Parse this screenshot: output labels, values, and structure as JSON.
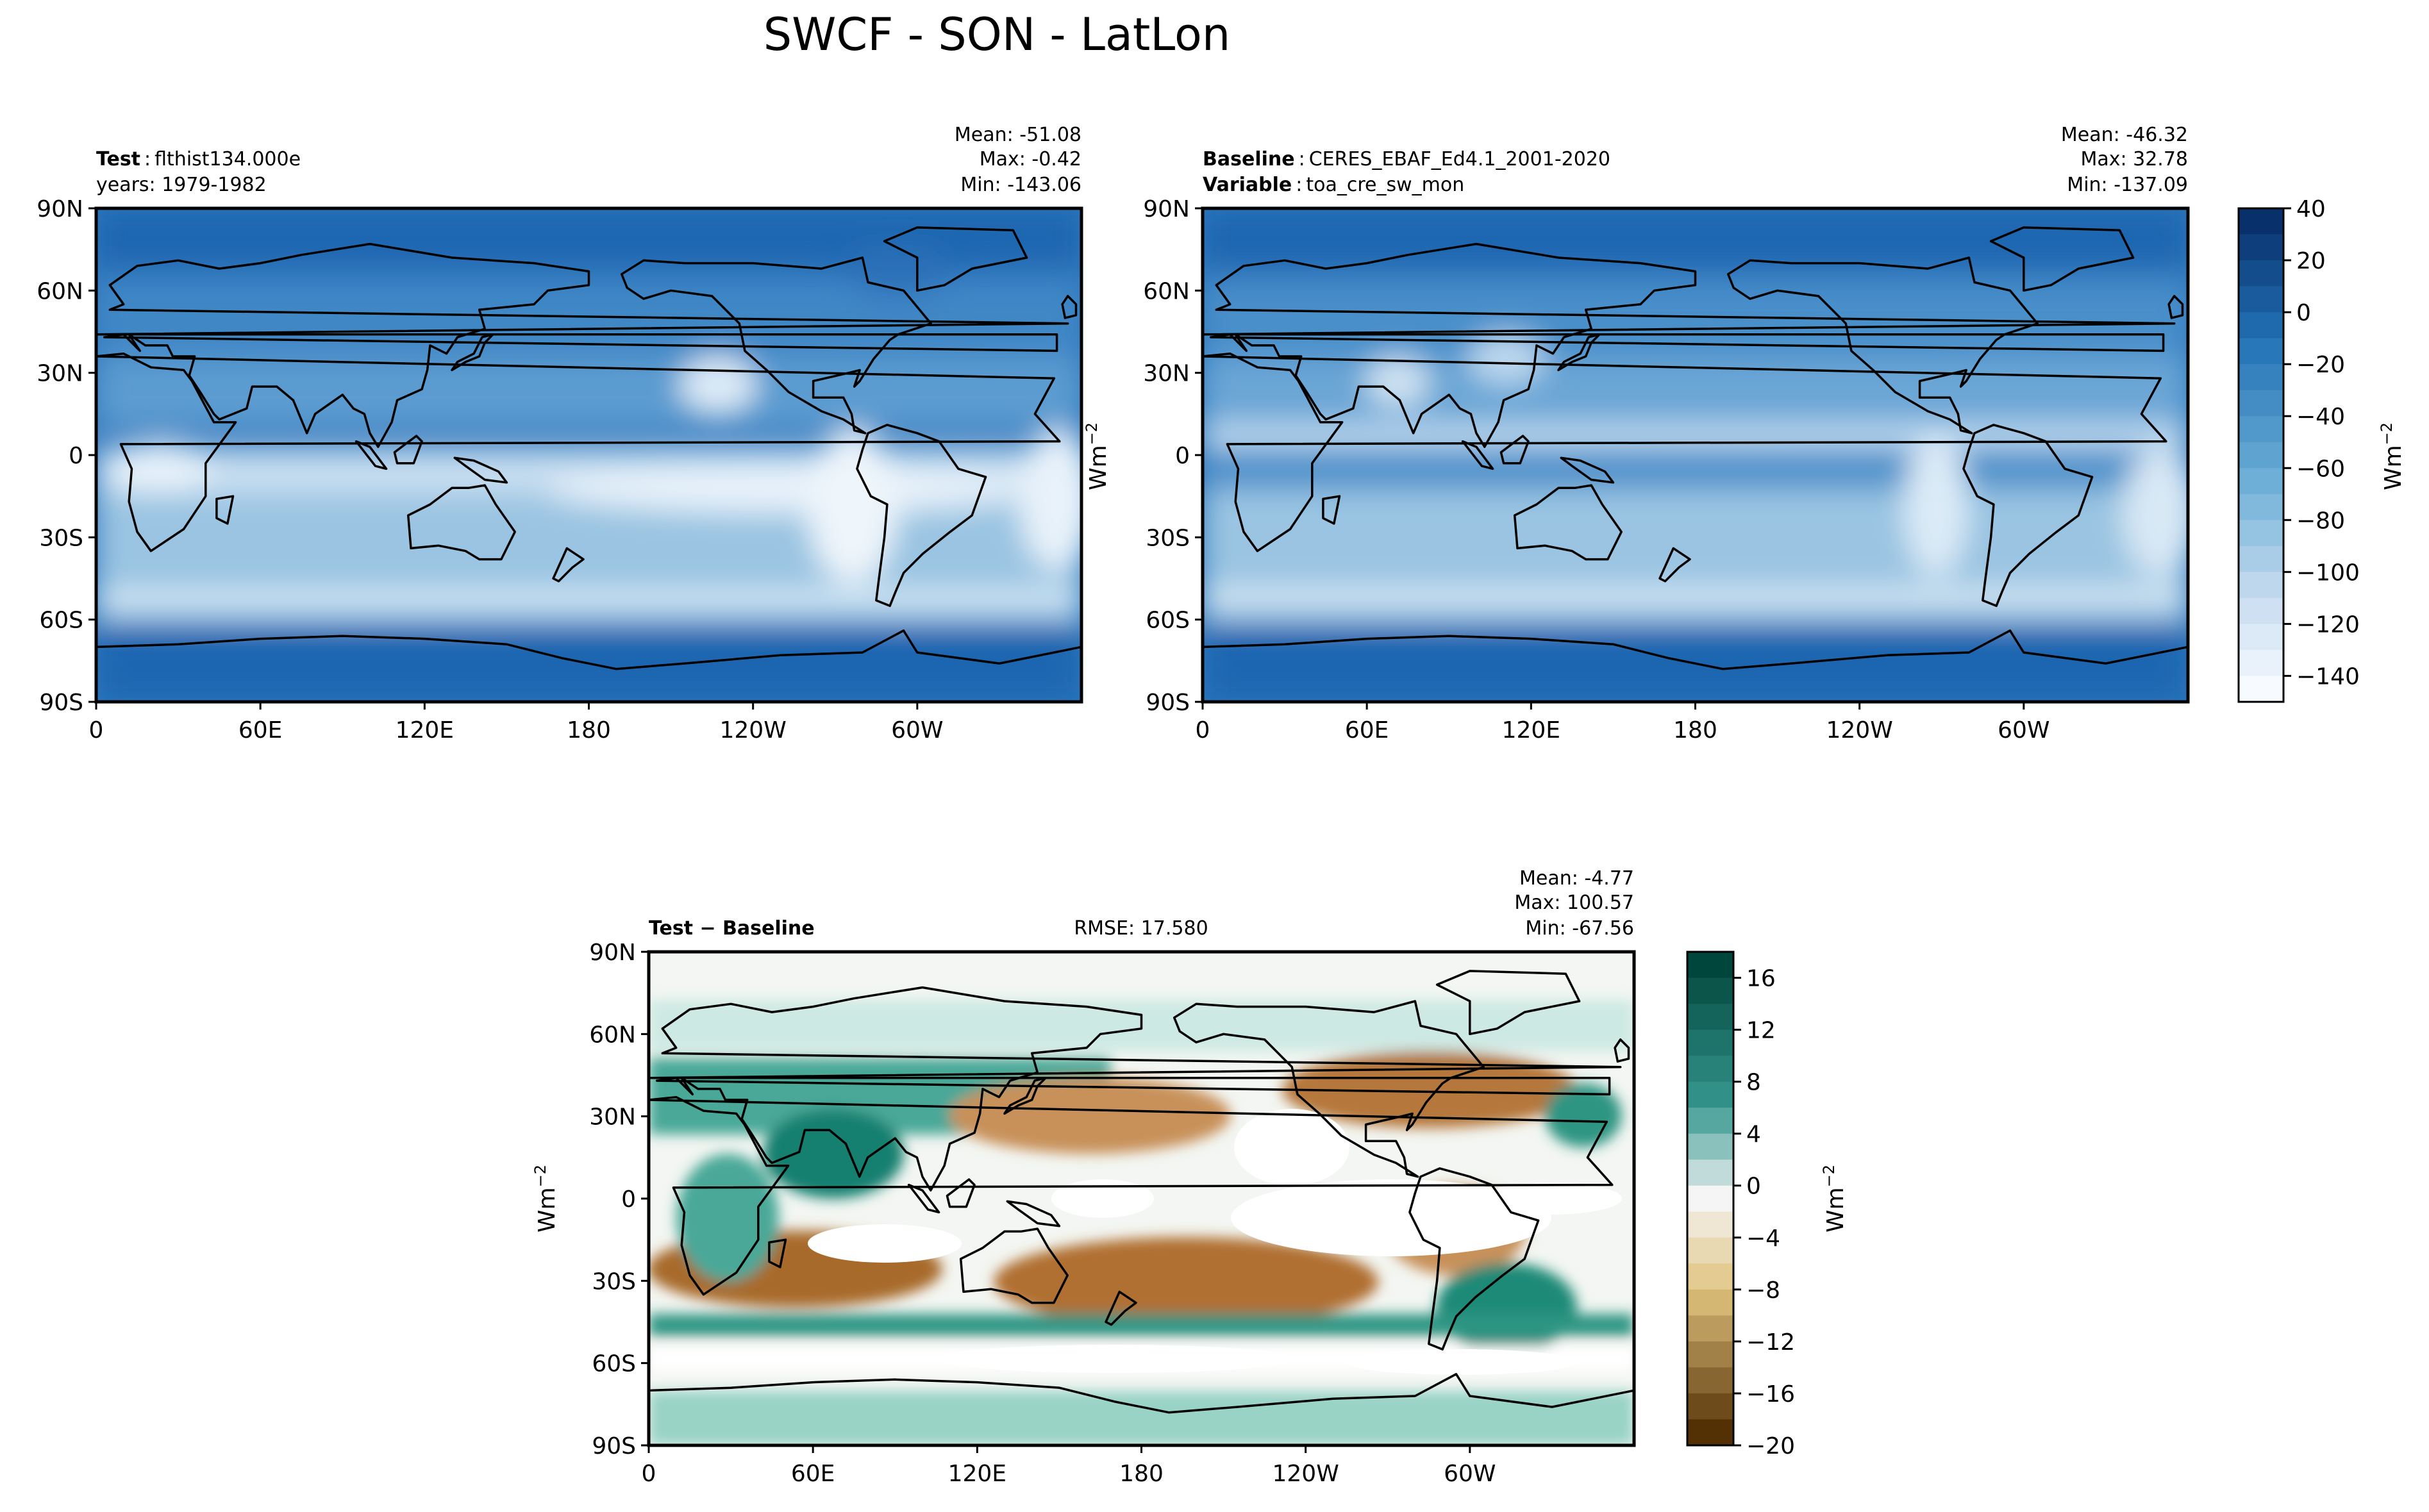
{
  "figure_title": "SWCF - SON - LatLon",
  "colors": {
    "ocean_deep": "#1f66b1",
    "ocean_mid": "#4a8fca",
    "ocean_light": "#9ac4e2",
    "band_white": "#e6f1fa",
    "diff_pos": "#0f7a66",
    "diff_neg": "#9b5c12",
    "diff_neutral": "#ffffff"
  },
  "chart_data": [
    {
      "type": "heatmap",
      "panel": "test",
      "label_bold": "Test",
      "label_sep": ":",
      "label_text": "flthist134.000e",
      "sub_label": "years: 1979-1982",
      "stats": [
        "Mean: -51.08",
        "Max: -0.42",
        "Min: -143.06"
      ],
      "lat_ticks": [
        "90N",
        "60N",
        "30N",
        "0",
        "30S",
        "60S",
        "90S"
      ],
      "lon_ticks": [
        "0",
        "60E",
        "120E",
        "180",
        "120W",
        "60W"
      ],
      "xlim": [
        0,
        360
      ],
      "ylim": [
        -90,
        90
      ]
    },
    {
      "type": "heatmap",
      "panel": "baseline",
      "label_bold": "Baseline",
      "label_sep": ":",
      "label_text": "CERES_EBAF_Ed4.1_2001-2020",
      "label2_bold": "Variable",
      "label2_text": "toa_cre_sw_mon",
      "stats": [
        "Mean: -46.32",
        "Max: 32.78",
        "Min: -137.09"
      ],
      "lat_ticks": [
        "90N",
        "60N",
        "30N",
        "0",
        "30S",
        "60S",
        "90S"
      ],
      "lon_ticks": [
        "0",
        "60E",
        "120E",
        "180",
        "120W",
        "60W"
      ],
      "xlim": [
        0,
        360
      ],
      "ylim": [
        -90,
        90
      ],
      "colorbar": {
        "label": "Wm",
        "label_exp": "−2",
        "ticks": [
          "40",
          "20",
          "0",
          "−20",
          "−40",
          "−60",
          "−80",
          "−100",
          "−120",
          "−140"
        ],
        "range": [
          -150,
          40
        ],
        "levels": 19
      }
    },
    {
      "type": "heatmap",
      "panel": "difference",
      "label_bold": "Test − Baseline",
      "rmse": "RMSE: 17.580",
      "stats": [
        "Mean: -4.77",
        "Max: 100.57",
        "Min: -67.56"
      ],
      "lat_ticks": [
        "90N",
        "60N",
        "30N",
        "0",
        "30S",
        "60S",
        "90S"
      ],
      "lon_ticks": [
        "0",
        "60E",
        "120E",
        "180",
        "120W",
        "60W"
      ],
      "xlim": [
        0,
        360
      ],
      "ylim": [
        -90,
        90
      ],
      "ylabel": "Wm",
      "ylabel_exp": "−2",
      "colorbar": {
        "label": "Wm",
        "label_exp": "−2",
        "ticks": [
          "16",
          "12",
          "8",
          "4",
          "0",
          "−4",
          "−8",
          "−12",
          "−16",
          "−20"
        ],
        "range": [
          -20,
          18
        ],
        "levels": 19
      }
    }
  ]
}
